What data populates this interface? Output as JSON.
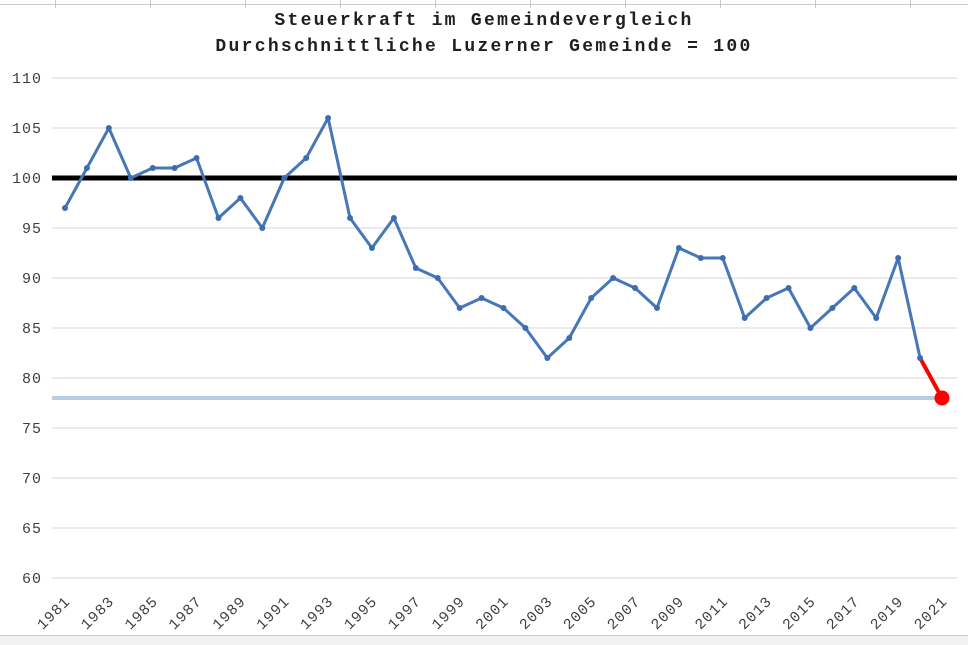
{
  "chart": {
    "title_line1": "Steuerkraft im Gemeindevergleich",
    "title_line2": "Durchschnittliche Luzerner Gemeinde = 100"
  },
  "chart_data": {
    "type": "line",
    "title": "Steuerkraft im Gemeindevergleich",
    "subtitle": "Durchschnittliche Luzerner Gemeinde = 100",
    "x": [
      1981,
      1982,
      1983,
      1984,
      1985,
      1986,
      1987,
      1988,
      1989,
      1990,
      1991,
      1992,
      1993,
      1994,
      1995,
      1996,
      1997,
      1998,
      1999,
      2000,
      2001,
      2002,
      2003,
      2004,
      2005,
      2006,
      2007,
      2008,
      2009,
      2010,
      2011,
      2012,
      2013,
      2014,
      2015,
      2016,
      2017,
      2018,
      2019,
      2020,
      2021
    ],
    "series": [
      {
        "color": "#4777B6",
        "marker_color": "#3D6DAE",
        "values": [
          97,
          101,
          105,
          100,
          101,
          101,
          102,
          96,
          98,
          95,
          100,
          102,
          106,
          96,
          93,
          96,
          91,
          90,
          87,
          88,
          87,
          85,
          82,
          84,
          88,
          90,
          89,
          87,
          93,
          92,
          92,
          86,
          88,
          89,
          85,
          87,
          89,
          86,
          92,
          82,
          78
        ]
      }
    ],
    "highlight_last": {
      "year": 2021,
      "value": 78,
      "color": "#FF0000"
    },
    "reference_lines": [
      {
        "value": 100,
        "color": "#000000",
        "width": 5,
        "full_width": true
      },
      {
        "value": 78,
        "color": "#B8CCE4",
        "width": 4,
        "full_width": false
      }
    ],
    "ylim": [
      60,
      110
    ],
    "ytick_step": 5,
    "yticks": [
      110,
      105,
      100,
      95,
      90,
      85,
      80,
      75,
      70,
      65,
      60
    ],
    "xticks": [
      1981,
      1983,
      1985,
      1987,
      1989,
      1991,
      1993,
      1995,
      1997,
      1999,
      2001,
      2003,
      2005,
      2007,
      2009,
      2011,
      2013,
      2015,
      2017,
      2019,
      2021
    ],
    "grid": true,
    "gridline_color": "#D4D4D4",
    "axis_label_color": "#404040",
    "legend": "none"
  }
}
